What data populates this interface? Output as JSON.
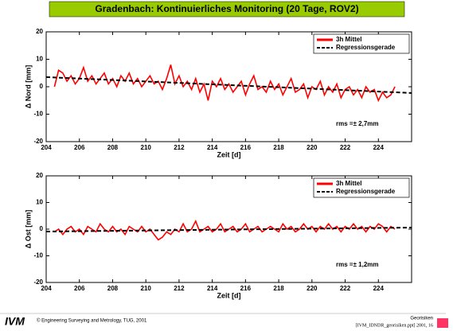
{
  "header": {
    "title": "Gradenbach: Kontinuierliches Monitoring (20 Tage, ROV2)"
  },
  "footer": {
    "logo": "IVM",
    "copyright": "© Engineering Surveying and Metrology, TUG, 2001",
    "subject": "Georisiken",
    "file": "[IVM_IDNDR_georisiken.ppt] 2001, 16"
  },
  "chart_data": [
    {
      "type": "line",
      "xlabel": "Zeit [d]",
      "ylabel": "Δ Nord [mm]",
      "annotation": "rms =± 2,7mm",
      "legend": "upper right",
      "xlim": [
        204,
        226
      ],
      "xticks": [
        204,
        206,
        208,
        210,
        212,
        214,
        216,
        218,
        220,
        222,
        224
      ],
      "ylim": [
        -20,
        20
      ],
      "yticks": [
        -20,
        -10,
        0,
        10,
        20
      ],
      "x": [
        204.5,
        204.75,
        205,
        205.25,
        205.5,
        205.75,
        206,
        206.25,
        206.5,
        206.75,
        207,
        207.25,
        207.5,
        207.75,
        208,
        208.25,
        208.5,
        208.75,
        209,
        209.25,
        209.5,
        209.75,
        210,
        210.25,
        210.5,
        210.75,
        211,
        211.25,
        211.5,
        211.75,
        212,
        212.25,
        212.5,
        212.75,
        213,
        213.25,
        213.5,
        213.75,
        214,
        214.25,
        214.5,
        214.75,
        215,
        215.25,
        215.5,
        215.75,
        216,
        216.25,
        216.5,
        216.75,
        217,
        217.25,
        217.5,
        217.75,
        218,
        218.25,
        218.5,
        218.75,
        219,
        219.25,
        219.5,
        219.75,
        220,
        220.25,
        220.5,
        220.75,
        221,
        221.25,
        221.5,
        221.75,
        222,
        222.25,
        222.5,
        222.75,
        223,
        223.25,
        223.5,
        223.75,
        224,
        224.25,
        224.5,
        224.75,
        225
      ],
      "series": [
        {
          "name": "3h Mittel",
          "color": "#ff0000",
          "style": "solid",
          "values": [
            0,
            6,
            5,
            2,
            4,
            1,
            3,
            7,
            2,
            4,
            1,
            3,
            5,
            1,
            3,
            0,
            4,
            2,
            5,
            1,
            3,
            0,
            2,
            4,
            1,
            2,
            -1,
            3,
            8,
            1,
            4,
            0,
            2,
            -1,
            3,
            -2,
            1,
            -5,
            2,
            0,
            3,
            -1,
            1,
            -2,
            0,
            2,
            -3,
            1,
            4,
            -1,
            0,
            -2,
            2,
            -1,
            1,
            -3,
            0,
            3,
            -2,
            -1,
            1,
            -4,
            0,
            -1,
            2,
            -3,
            0,
            -2,
            1,
            -4,
            -1,
            0,
            -3,
            -1,
            -4,
            0,
            -2,
            -1,
            -5,
            -2,
            -4,
            -3,
            0
          ]
        },
        {
          "name": "Regressionsgerade",
          "color": "#000000",
          "style": "dashed",
          "x": [
            204,
            226
          ],
          "values": [
            3.5,
            -2.3
          ]
        }
      ]
    },
    {
      "type": "line",
      "xlabel": "Zeit [d]",
      "ylabel": "Δ Ost [mm]",
      "annotation": "rms =± 1,2mm",
      "legend": "upper right",
      "xlim": [
        204,
        226
      ],
      "xticks": [
        204,
        206,
        208,
        210,
        212,
        214,
        216,
        218,
        220,
        222,
        224
      ],
      "ylim": [
        -20,
        20
      ],
      "yticks": [
        -20,
        -10,
        0,
        10,
        20
      ],
      "x": [
        204.5,
        204.75,
        205,
        205.25,
        205.5,
        205.75,
        206,
        206.25,
        206.5,
        206.75,
        207,
        207.25,
        207.5,
        207.75,
        208,
        208.25,
        208.5,
        208.75,
        209,
        209.25,
        209.5,
        209.75,
        210,
        210.25,
        210.5,
        210.75,
        211,
        211.25,
        211.5,
        211.75,
        212,
        212.25,
        212.5,
        212.75,
        213,
        213.25,
        213.5,
        213.75,
        214,
        214.25,
        214.5,
        214.75,
        215,
        215.25,
        215.5,
        215.75,
        216,
        216.25,
        216.5,
        216.75,
        217,
        217.25,
        217.5,
        217.75,
        218,
        218.25,
        218.5,
        218.75,
        219,
        219.25,
        219.5,
        219.75,
        220,
        220.25,
        220.5,
        220.75,
        221,
        221.25,
        221.5,
        221.75,
        222,
        222.25,
        222.5,
        222.75,
        223,
        223.25,
        223.5,
        223.75,
        224,
        224.25,
        224.5,
        224.75,
        225
      ],
      "series": [
        {
          "name": "3h Mittel",
          "color": "#ff0000",
          "style": "solid",
          "values": [
            -1,
            0,
            -2,
            0,
            1,
            -1,
            0,
            -2,
            1,
            0,
            -1,
            2,
            0,
            -1,
            1,
            -1,
            0,
            -2,
            1,
            0,
            -1,
            1,
            -1,
            0,
            -2,
            -4,
            -3,
            -1,
            -2,
            0,
            -1,
            2,
            -1,
            0,
            3,
            -1,
            0,
            1,
            -1,
            0,
            2,
            -1,
            0,
            1,
            -1,
            0,
            2,
            -1,
            0,
            1,
            -1,
            0,
            1,
            0,
            -1,
            2,
            0,
            1,
            -1,
            0,
            2,
            0,
            1,
            -1,
            1,
            0,
            2,
            0,
            1,
            -1,
            1,
            0,
            2,
            0,
            1,
            -1,
            1,
            0,
            2,
            1,
            -1,
            1,
            0
          ]
        },
        {
          "name": "Regressionsgerade",
          "color": "#000000",
          "style": "dashed",
          "x": [
            204,
            226
          ],
          "values": [
            -0.9,
            0.6
          ]
        }
      ]
    }
  ]
}
